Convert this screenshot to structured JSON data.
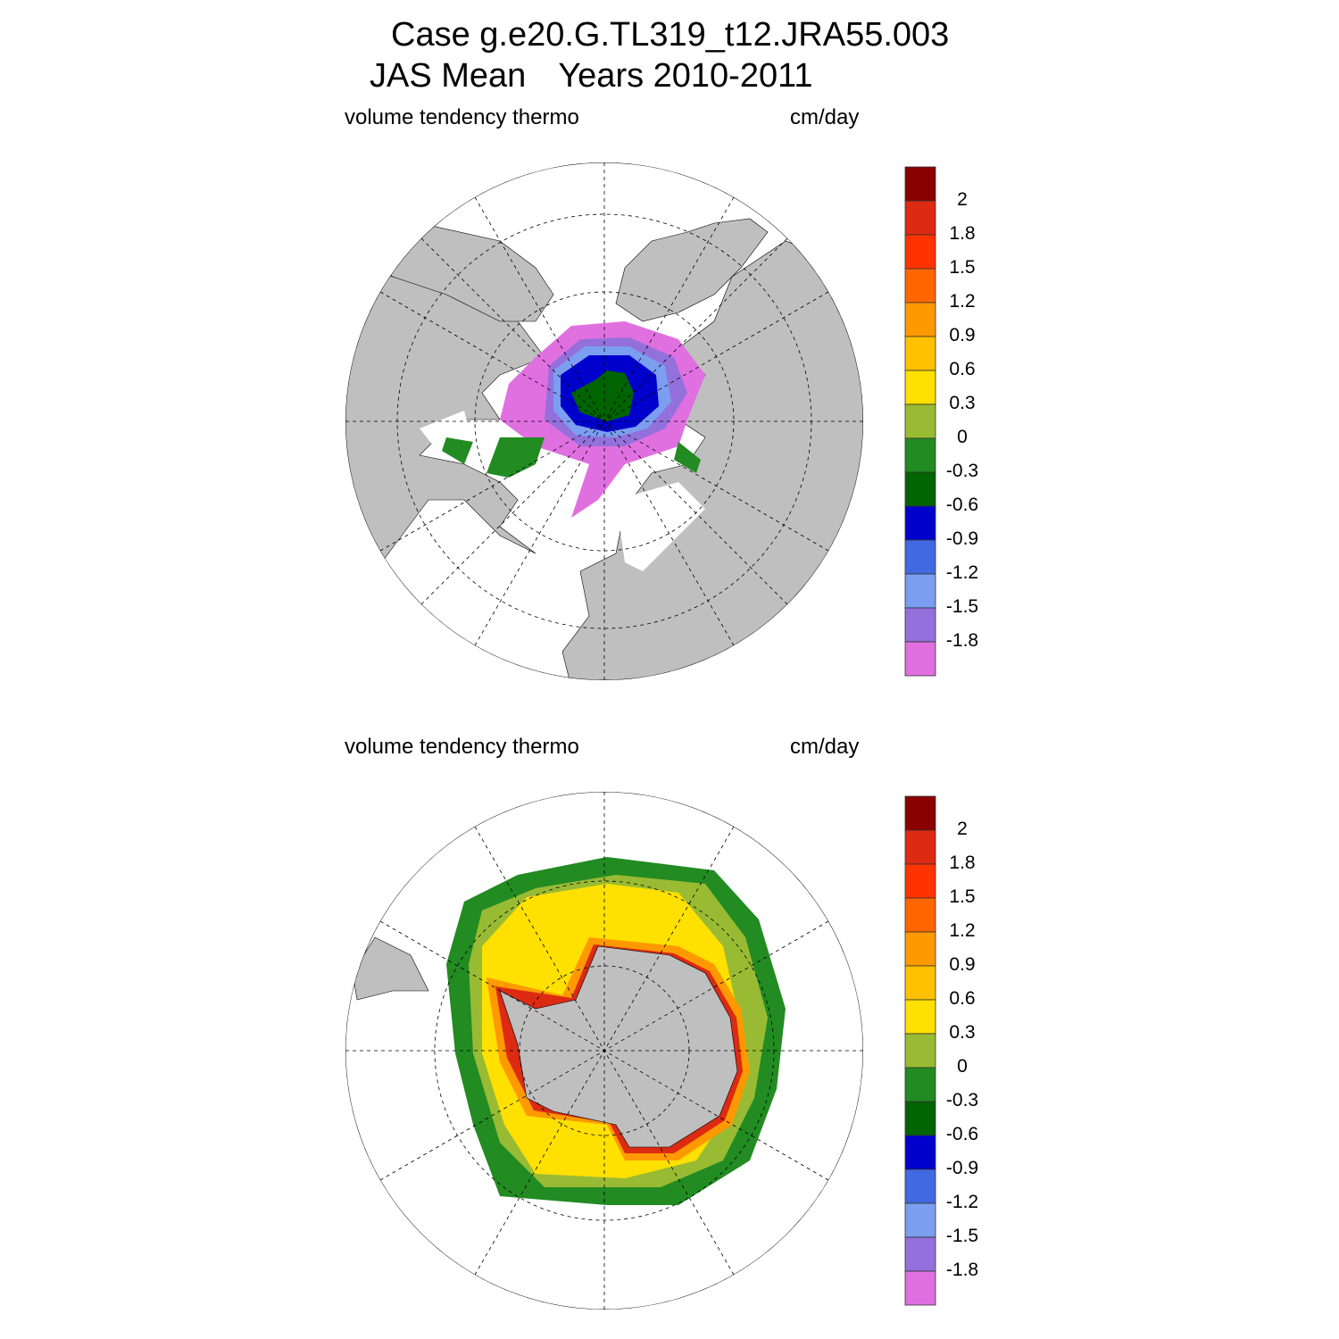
{
  "title": {
    "line1": "Case g.e20.G.TL319_t12.JRA55.003",
    "line2_season": "JAS Mean",
    "line2_years": "Years 2010-2011"
  },
  "panels": [
    {
      "hemisphere": "north",
      "left_label": "volume tendency thermo",
      "right_label": "cm/day"
    },
    {
      "hemisphere": "south",
      "left_label": "volume tendency thermo",
      "right_label": "cm/day"
    }
  ],
  "colorbar": {
    "labels": [
      "2",
      "1.8",
      "1.5",
      "1.2",
      "0.9",
      "0.6",
      "0.3",
      "0",
      "-0.3",
      "-0.6",
      "-0.9",
      "-1.2",
      "-1.5",
      "-1.8"
    ],
    "colors": [
      "#8b0000",
      "#dd2a12",
      "#ff3300",
      "#ff6600",
      "#ff9900",
      "#ffc000",
      "#ffe000",
      "#99bb33",
      "#228b22",
      "#006400",
      "#0000cd",
      "#4169e1",
      "#7b9ef0",
      "#9370db",
      "#e070e0"
    ]
  },
  "colors": {
    "land": "#bfbfbf",
    "ocean": "#ffffff"
  }
}
